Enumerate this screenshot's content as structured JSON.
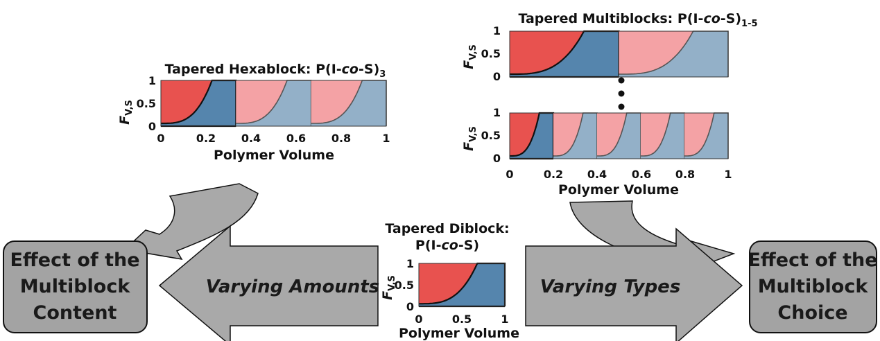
{
  "colors": {
    "red_fill": "#e8524f",
    "blue_fill": "#5585ad",
    "pink_fill": "#f4a2a5",
    "lightblue_fill": "#93b0c8",
    "gray_shape": "#a9a9a9",
    "box_fill": "#a3a3a3",
    "line": "#111111"
  },
  "labels": {
    "hexablock_title": "Tapered Hexablock: P(I-",
    "hexablock_title_italic": "co",
    "hexablock_title_end": "-S)",
    "hexablock_sub": "3",
    "multiblock_title": "Tapered Multiblocks: P(I-",
    "multiblock_title_italic": "co",
    "multiblock_title_end": "-S)",
    "multiblock_sub": "1-5",
    "diblock_title_line1": "Tapered Diblock:",
    "diblock_title_line2": "P(I-",
    "diblock_title_line2_italic": "co",
    "diblock_title_line2_end": "-S)",
    "ylabel": "F",
    "ylabel_sub": "V,S",
    "xlabel": "Polymer Volume",
    "y_ticks": [
      "0",
      "0.5",
      "1"
    ],
    "x_ticks_fine": [
      "0",
      "0.2",
      "0.4",
      "0.6",
      "0.8",
      "1"
    ],
    "x_ticks_diblock": [
      "0",
      "0.5",
      "1"
    ]
  },
  "left_box": {
    "line1": "Effect of the",
    "line2": "Multiblock",
    "line3": "Content"
  },
  "right_box": {
    "line1": "Effect of the",
    "line2": "Multiblock",
    "line3": "Choice"
  },
  "left_arrow_label": "Varying Amounts",
  "right_arrow_label": "Varying Types",
  "chart_data": [
    {
      "type": "area",
      "name": "hexablock",
      "blocks": 3,
      "xlim": [
        0,
        1
      ],
      "ylim": [
        0,
        1
      ],
      "ylabel": "F_V,S",
      "xlabel": "Polymer Volume"
    },
    {
      "type": "area",
      "name": "multiblock-top",
      "blocks": 2,
      "xlim": [
        0,
        1
      ],
      "ylim": [
        0,
        1
      ],
      "ylabel": "F_V,S"
    },
    {
      "type": "area",
      "name": "multiblock-bottom",
      "blocks": 5,
      "xlim": [
        0,
        1
      ],
      "ylim": [
        0,
        1
      ],
      "ylabel": "F_V,S",
      "xlabel": "Polymer Volume"
    },
    {
      "type": "area",
      "name": "diblock",
      "blocks": 1,
      "xlim": [
        0,
        1
      ],
      "ylim": [
        0,
        1
      ],
      "ylabel": "F_V,S",
      "xlabel": "Polymer Volume"
    }
  ]
}
